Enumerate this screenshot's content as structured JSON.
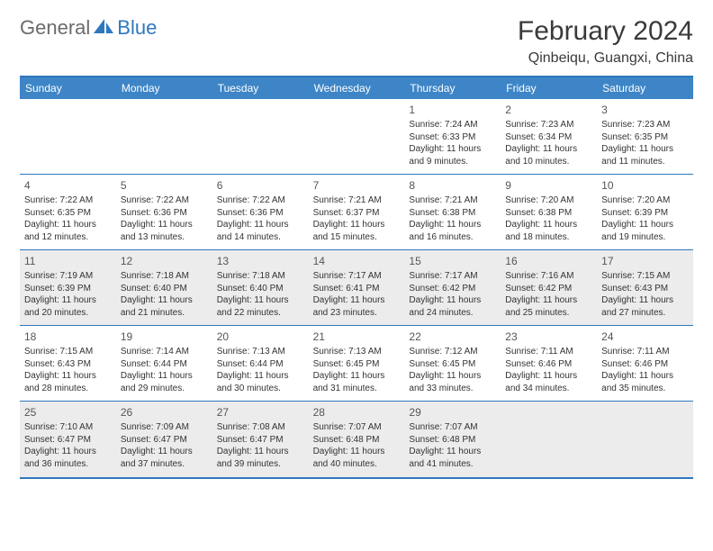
{
  "logo": {
    "general": "General",
    "blue": "Blue"
  },
  "title": "February 2024",
  "subtitle": "Qinbeiqu, Guangxi, China",
  "colors": {
    "header_bar": "#3d85c6",
    "border": "#2f78bd",
    "alt_bg": "#ececec",
    "text": "#333333",
    "logo_gray": "#6b6b6b",
    "logo_blue": "#2f78bd"
  },
  "weekdays": [
    "Sunday",
    "Monday",
    "Tuesday",
    "Wednesday",
    "Thursday",
    "Friday",
    "Saturday"
  ],
  "weeks": [
    [
      null,
      null,
      null,
      null,
      {
        "n": "1",
        "sr": "7:24 AM",
        "ss": "6:33 PM",
        "dl": "11 hours and 9 minutes."
      },
      {
        "n": "2",
        "sr": "7:23 AM",
        "ss": "6:34 PM",
        "dl": "11 hours and 10 minutes."
      },
      {
        "n": "3",
        "sr": "7:23 AM",
        "ss": "6:35 PM",
        "dl": "11 hours and 11 minutes."
      }
    ],
    [
      {
        "n": "4",
        "sr": "7:22 AM",
        "ss": "6:35 PM",
        "dl": "11 hours and 12 minutes."
      },
      {
        "n": "5",
        "sr": "7:22 AM",
        "ss": "6:36 PM",
        "dl": "11 hours and 13 minutes."
      },
      {
        "n": "6",
        "sr": "7:22 AM",
        "ss": "6:36 PM",
        "dl": "11 hours and 14 minutes."
      },
      {
        "n": "7",
        "sr": "7:21 AM",
        "ss": "6:37 PM",
        "dl": "11 hours and 15 minutes."
      },
      {
        "n": "8",
        "sr": "7:21 AM",
        "ss": "6:38 PM",
        "dl": "11 hours and 16 minutes."
      },
      {
        "n": "9",
        "sr": "7:20 AM",
        "ss": "6:38 PM",
        "dl": "11 hours and 18 minutes."
      },
      {
        "n": "10",
        "sr": "7:20 AM",
        "ss": "6:39 PM",
        "dl": "11 hours and 19 minutes."
      }
    ],
    [
      {
        "n": "11",
        "sr": "7:19 AM",
        "ss": "6:39 PM",
        "dl": "11 hours and 20 minutes."
      },
      {
        "n": "12",
        "sr": "7:18 AM",
        "ss": "6:40 PM",
        "dl": "11 hours and 21 minutes."
      },
      {
        "n": "13",
        "sr": "7:18 AM",
        "ss": "6:40 PM",
        "dl": "11 hours and 22 minutes."
      },
      {
        "n": "14",
        "sr": "7:17 AM",
        "ss": "6:41 PM",
        "dl": "11 hours and 23 minutes."
      },
      {
        "n": "15",
        "sr": "7:17 AM",
        "ss": "6:42 PM",
        "dl": "11 hours and 24 minutes."
      },
      {
        "n": "16",
        "sr": "7:16 AM",
        "ss": "6:42 PM",
        "dl": "11 hours and 25 minutes."
      },
      {
        "n": "17",
        "sr": "7:15 AM",
        "ss": "6:43 PM",
        "dl": "11 hours and 27 minutes."
      }
    ],
    [
      {
        "n": "18",
        "sr": "7:15 AM",
        "ss": "6:43 PM",
        "dl": "11 hours and 28 minutes."
      },
      {
        "n": "19",
        "sr": "7:14 AM",
        "ss": "6:44 PM",
        "dl": "11 hours and 29 minutes."
      },
      {
        "n": "20",
        "sr": "7:13 AM",
        "ss": "6:44 PM",
        "dl": "11 hours and 30 minutes."
      },
      {
        "n": "21",
        "sr": "7:13 AM",
        "ss": "6:45 PM",
        "dl": "11 hours and 31 minutes."
      },
      {
        "n": "22",
        "sr": "7:12 AM",
        "ss": "6:45 PM",
        "dl": "11 hours and 33 minutes."
      },
      {
        "n": "23",
        "sr": "7:11 AM",
        "ss": "6:46 PM",
        "dl": "11 hours and 34 minutes."
      },
      {
        "n": "24",
        "sr": "7:11 AM",
        "ss": "6:46 PM",
        "dl": "11 hours and 35 minutes."
      }
    ],
    [
      {
        "n": "25",
        "sr": "7:10 AM",
        "ss": "6:47 PM",
        "dl": "11 hours and 36 minutes."
      },
      {
        "n": "26",
        "sr": "7:09 AM",
        "ss": "6:47 PM",
        "dl": "11 hours and 37 minutes."
      },
      {
        "n": "27",
        "sr": "7:08 AM",
        "ss": "6:47 PM",
        "dl": "11 hours and 39 minutes."
      },
      {
        "n": "28",
        "sr": "7:07 AM",
        "ss": "6:48 PM",
        "dl": "11 hours and 40 minutes."
      },
      {
        "n": "29",
        "sr": "7:07 AM",
        "ss": "6:48 PM",
        "dl": "11 hours and 41 minutes."
      },
      null,
      null
    ]
  ],
  "labels": {
    "sunrise": "Sunrise:",
    "sunset": "Sunset:",
    "daylight": "Daylight:"
  },
  "alt_rows": [
    false,
    false,
    true,
    false,
    true
  ]
}
